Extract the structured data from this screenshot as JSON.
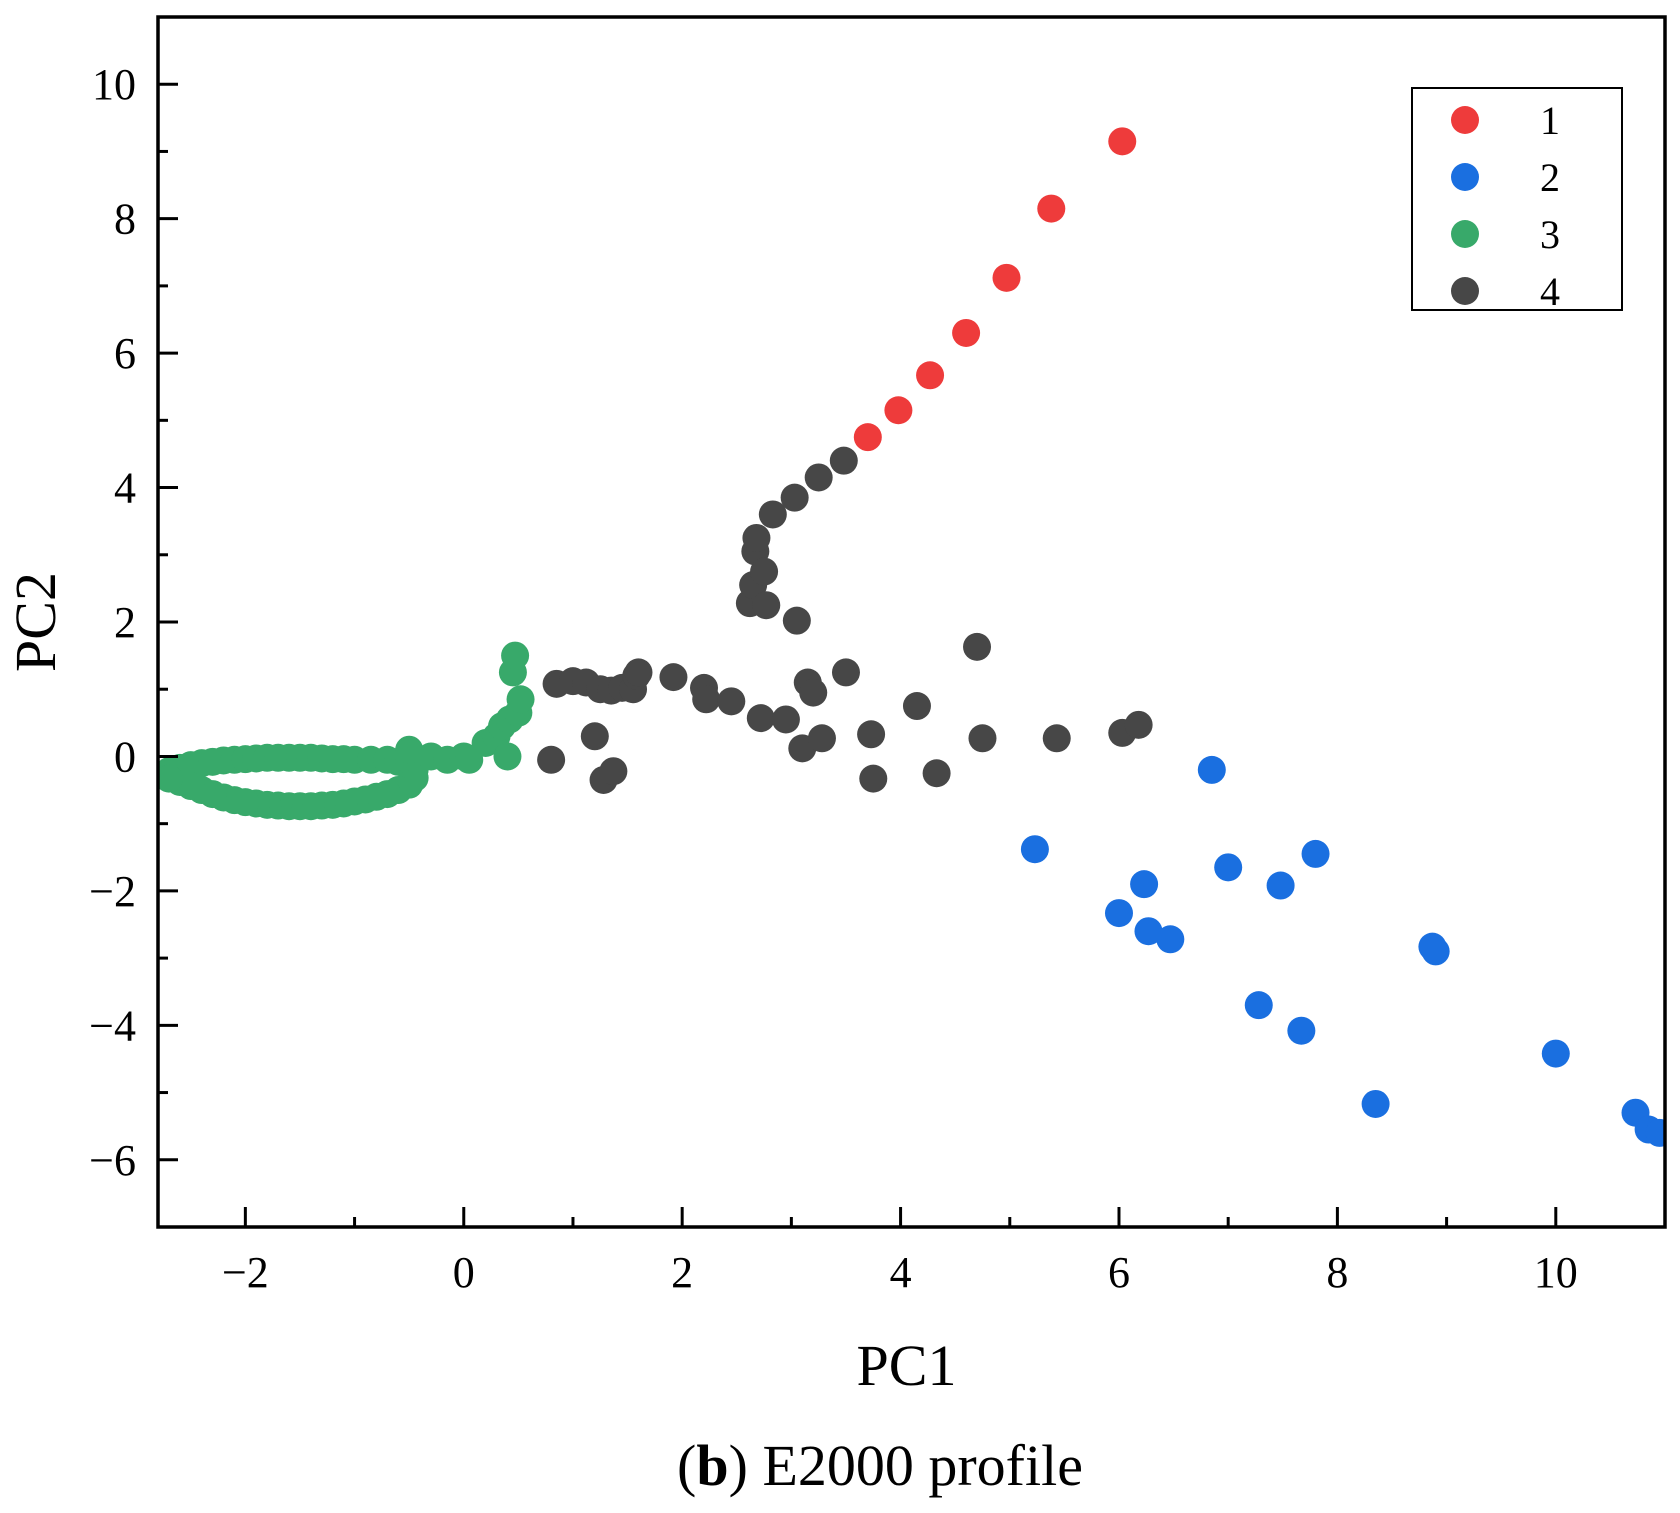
{
  "chart_data": {
    "type": "scatter",
    "xlabel": "PC1",
    "ylabel": "PC2",
    "xlim": [
      -2.8,
      11.0
    ],
    "ylim": [
      -7.0,
      11.0
    ],
    "xticks": [
      -2,
      0,
      2,
      4,
      6,
      8,
      10
    ],
    "xtick_labels": [
      "−2",
      "0",
      "2",
      "4",
      "6",
      "8",
      "10"
    ],
    "yticks": [
      -6,
      -4,
      -2,
      0,
      2,
      4,
      6,
      8,
      10
    ],
    "ytick_labels": [
      "−6",
      "−4",
      "−2",
      "0",
      "2",
      "4",
      "6",
      "8",
      "10"
    ],
    "grid": false,
    "legend_position": "top-right",
    "caption": {
      "prefix": "(",
      "label": "b",
      "suffix": ") E2000 profile"
    },
    "series": [
      {
        "name": "1",
        "color": "#ee3b3b",
        "points": [
          [
            3.7,
            4.75
          ],
          [
            3.98,
            5.15
          ],
          [
            4.27,
            5.67
          ],
          [
            4.6,
            6.3
          ],
          [
            4.97,
            7.12
          ],
          [
            5.38,
            8.15
          ],
          [
            6.03,
            9.15
          ]
        ]
      },
      {
        "name": "2",
        "color": "#1a6fe0",
        "points": [
          [
            5.23,
            -1.38
          ],
          [
            6.0,
            -2.33
          ],
          [
            6.23,
            -1.9
          ],
          [
            6.27,
            -2.6
          ],
          [
            6.47,
            -2.72
          ],
          [
            6.85,
            -0.2
          ],
          [
            7.0,
            -1.65
          ],
          [
            7.28,
            -3.7
          ],
          [
            7.48,
            -1.92
          ],
          [
            7.67,
            -4.08
          ],
          [
            7.8,
            -1.45
          ],
          [
            8.35,
            -5.17
          ],
          [
            8.87,
            -2.83
          ],
          [
            8.9,
            -2.9
          ],
          [
            10.0,
            -4.42
          ],
          [
            10.73,
            -5.3
          ],
          [
            10.85,
            -5.55
          ],
          [
            10.95,
            -5.6
          ]
        ]
      },
      {
        "name": "3",
        "color": "#38a96a",
        "points": [
          [
            -2.8,
            -0.28
          ],
          [
            -2.7,
            -0.22
          ],
          [
            -2.6,
            -0.17
          ],
          [
            -2.5,
            -0.13
          ],
          [
            -2.4,
            -0.1
          ],
          [
            -2.3,
            -0.08
          ],
          [
            -2.2,
            -0.06
          ],
          [
            -2.1,
            -0.05
          ],
          [
            -2.0,
            -0.04
          ],
          [
            -1.9,
            -0.03
          ],
          [
            -1.8,
            -0.02
          ],
          [
            -1.7,
            -0.02
          ],
          [
            -1.6,
            -0.02
          ],
          [
            -1.5,
            -0.02
          ],
          [
            -1.4,
            -0.02
          ],
          [
            -1.3,
            -0.03
          ],
          [
            -1.2,
            -0.04
          ],
          [
            -1.1,
            -0.04
          ],
          [
            -1.0,
            -0.05
          ],
          [
            -0.85,
            -0.05
          ],
          [
            -0.7,
            -0.05
          ],
          [
            -0.6,
            -0.08
          ],
          [
            -0.5,
            -0.1
          ],
          [
            -0.45,
            -0.2
          ],
          [
            -0.45,
            -0.32
          ],
          [
            -0.5,
            -0.42
          ],
          [
            -0.6,
            -0.5
          ],
          [
            -0.7,
            -0.56
          ],
          [
            -0.8,
            -0.6
          ],
          [
            -0.9,
            -0.64
          ],
          [
            -1.0,
            -0.67
          ],
          [
            -1.1,
            -0.7
          ],
          [
            -1.2,
            -0.72
          ],
          [
            -1.3,
            -0.73
          ],
          [
            -1.4,
            -0.74
          ],
          [
            -1.5,
            -0.74
          ],
          [
            -1.6,
            -0.74
          ],
          [
            -1.7,
            -0.73
          ],
          [
            -1.8,
            -0.72
          ],
          [
            -1.9,
            -0.7
          ],
          [
            -2.0,
            -0.68
          ],
          [
            -2.1,
            -0.65
          ],
          [
            -2.2,
            -0.61
          ],
          [
            -2.3,
            -0.56
          ],
          [
            -2.4,
            -0.5
          ],
          [
            -2.5,
            -0.44
          ],
          [
            -2.6,
            -0.38
          ],
          [
            -2.7,
            -0.33
          ],
          [
            -0.5,
            0.1
          ],
          [
            -0.3,
            0.0
          ],
          [
            -0.15,
            -0.05
          ],
          [
            0.0,
            0.0
          ],
          [
            0.05,
            -0.05
          ],
          [
            0.2,
            0.2
          ],
          [
            0.3,
            0.3
          ],
          [
            0.4,
            0.0
          ],
          [
            0.35,
            0.45
          ],
          [
            0.42,
            0.55
          ],
          [
            0.5,
            0.65
          ],
          [
            0.52,
            0.85
          ],
          [
            0.45,
            1.25
          ],
          [
            0.47,
            1.5
          ]
        ]
      },
      {
        "name": "4",
        "color": "#474747",
        "points": [
          [
            0.8,
            -0.05
          ],
          [
            0.85,
            1.08
          ],
          [
            1.0,
            1.12
          ],
          [
            1.12,
            1.1
          ],
          [
            1.2,
            0.3
          ],
          [
            1.25,
            1.0
          ],
          [
            1.28,
            -0.35
          ],
          [
            1.35,
            0.98
          ],
          [
            1.37,
            -0.22
          ],
          [
            1.45,
            1.02
          ],
          [
            1.55,
            1.0
          ],
          [
            1.58,
            1.2
          ],
          [
            1.6,
            1.25
          ],
          [
            1.92,
            1.18
          ],
          [
            2.2,
            1.02
          ],
          [
            2.22,
            0.85
          ],
          [
            2.45,
            0.82
          ],
          [
            2.62,
            2.28
          ],
          [
            2.65,
            2.55
          ],
          [
            2.67,
            3.05
          ],
          [
            2.68,
            3.25
          ],
          [
            2.72,
            0.57
          ],
          [
            2.75,
            2.75
          ],
          [
            2.77,
            2.25
          ],
          [
            2.83,
            3.6
          ],
          [
            2.95,
            0.55
          ],
          [
            3.03,
            3.85
          ],
          [
            3.05,
            2.02
          ],
          [
            3.1,
            0.12
          ],
          [
            3.15,
            1.1
          ],
          [
            3.2,
            0.95
          ],
          [
            3.25,
            4.15
          ],
          [
            3.28,
            0.27
          ],
          [
            3.48,
            4.4
          ],
          [
            3.5,
            1.25
          ],
          [
            3.73,
            0.33
          ],
          [
            3.75,
            -0.33
          ],
          [
            4.15,
            0.75
          ],
          [
            4.33,
            -0.25
          ],
          [
            4.7,
            1.63
          ],
          [
            4.75,
            0.27
          ],
          [
            5.43,
            0.27
          ],
          [
            6.03,
            0.35
          ],
          [
            6.18,
            0.47
          ]
        ]
      }
    ]
  }
}
